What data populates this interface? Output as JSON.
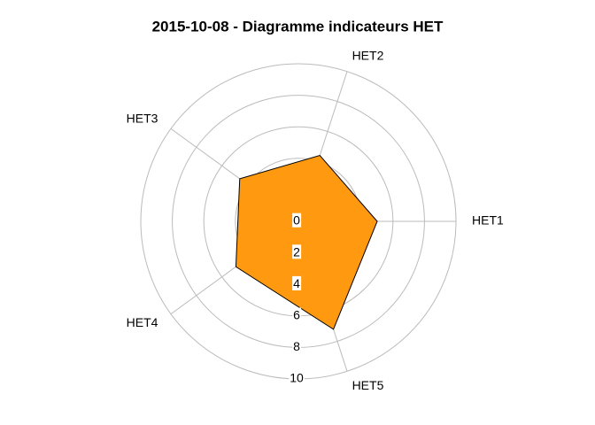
{
  "chart_data": {
    "type": "radar",
    "title": "2015-10-08 - Diagramme indicateurs HET",
    "categories": [
      "HET1",
      "HET2",
      "HET3",
      "HET4",
      "HET5"
    ],
    "values": [
      5,
      4.4,
      4.6,
      4.9,
      7.2
    ],
    "color": "#ff9a10",
    "rlim": [
      0,
      10
    ],
    "rticks": [
      0,
      2,
      4,
      6,
      8,
      10
    ],
    "grid": true
  }
}
